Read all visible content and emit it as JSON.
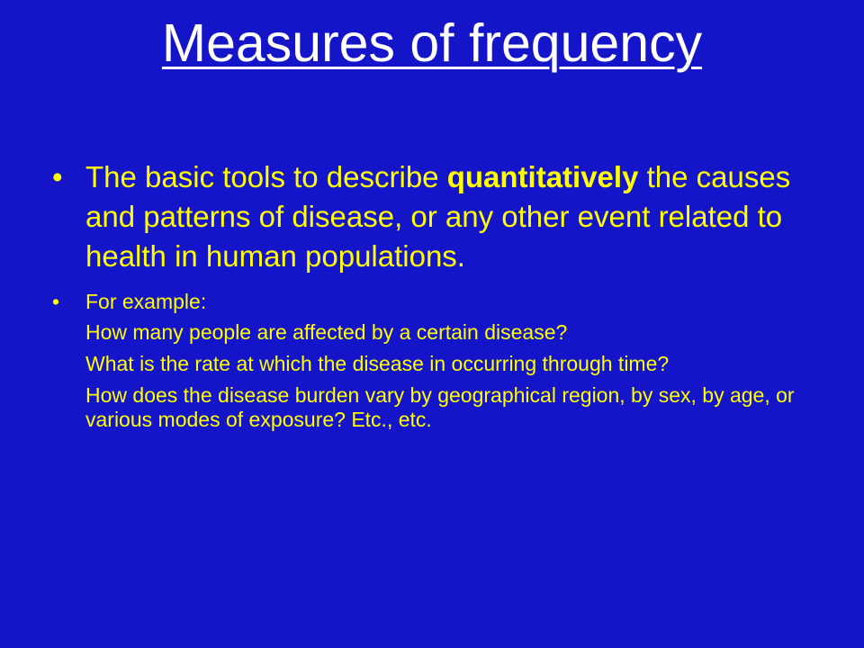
{
  "slide": {
    "title": "Measures of frequency",
    "bullets": [
      {
        "marker": "•",
        "text_before": "The basic tools to describe ",
        "emphasis": "quantitatively",
        "text_after": " the causes and patterns of disease, or any other event related to health in human populations."
      },
      {
        "marker": "•",
        "text": "For example:"
      }
    ],
    "examples": [
      "How many people are affected by a certain disease?",
      "What is the rate at which the disease in occurring through time?",
      "How does the disease burden vary by geographical region, by sex, by age, or various modes of exposure? Etc., etc."
    ]
  },
  "colors": {
    "background": "#1414C8",
    "title": "#FFFFFF",
    "body_text": "#FFFF00"
  }
}
